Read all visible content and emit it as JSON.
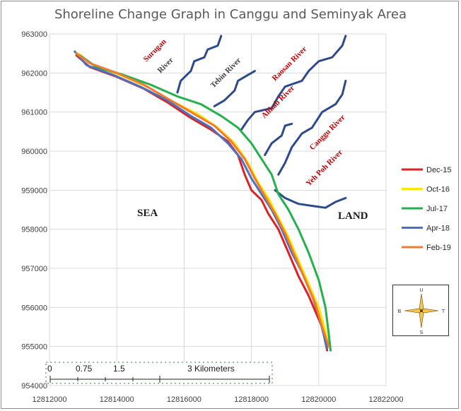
{
  "chart_data": {
    "type": "line",
    "title": "Shoreline Change Graph in Canggu and Seminyak Area",
    "xlabel": "",
    "ylabel": "",
    "xlim": [
      12812000,
      12822000
    ],
    "ylim": [
      954000,
      963000
    ],
    "x_ticks": [
      "12812000",
      "12814000",
      "12816000",
      "12818000",
      "12820000",
      "12822000"
    ],
    "y_ticks": [
      "954000",
      "955000",
      "956000",
      "957000",
      "958000",
      "959000",
      "960000",
      "961000",
      "962000",
      "963000"
    ],
    "grid": true,
    "legend_position": "right",
    "series": [
      {
        "name": "Dec-15",
        "color": "#e02020",
        "width": 3,
        "points": [
          [
            12812800,
            962450
          ],
          [
            12813200,
            962150
          ],
          [
            12814000,
            961900
          ],
          [
            12814800,
            961600
          ],
          [
            12815500,
            961250
          ],
          [
            12816200,
            960850
          ],
          [
            12816800,
            960550
          ],
          [
            12817300,
            960250
          ],
          [
            12817600,
            959900
          ],
          [
            12817800,
            959400
          ],
          [
            12818000,
            959000
          ],
          [
            12818300,
            958750
          ],
          [
            12818500,
            958400
          ],
          [
            12818800,
            958000
          ],
          [
            12819100,
            957400
          ],
          [
            12819400,
            956800
          ],
          [
            12819700,
            956300
          ],
          [
            12819900,
            955900
          ],
          [
            12820100,
            955500
          ],
          [
            12820200,
            955100
          ],
          [
            12820250,
            954900
          ]
        ]
      },
      {
        "name": "Oct-16",
        "color": "#ffe600",
        "width": 3,
        "points": [
          [
            12812850,
            962500
          ],
          [
            12813300,
            962200
          ],
          [
            12814100,
            961950
          ],
          [
            12814900,
            961650
          ],
          [
            12815700,
            961250
          ],
          [
            12816400,
            960950
          ],
          [
            12817000,
            960600
          ],
          [
            12817500,
            960200
          ],
          [
            12817900,
            959700
          ],
          [
            12818200,
            959200
          ],
          [
            12818500,
            958800
          ],
          [
            12818800,
            958300
          ],
          [
            12819100,
            957800
          ],
          [
            12819400,
            957200
          ],
          [
            12819700,
            956600
          ],
          [
            12820000,
            956000
          ],
          [
            12820200,
            955400
          ],
          [
            12820300,
            955000
          ]
        ]
      },
      {
        "name": "Jul-17",
        "color": "#22b14c",
        "width": 3,
        "points": [
          [
            12812900,
            962450
          ],
          [
            12813400,
            962150
          ],
          [
            12814200,
            961950
          ],
          [
            12815000,
            961700
          ],
          [
            12815800,
            961400
          ],
          [
            12816500,
            961200
          ],
          [
            12817100,
            960900
          ],
          [
            12817600,
            960600
          ],
          [
            12818000,
            960200
          ],
          [
            12818300,
            959800
          ],
          [
            12818600,
            959400
          ],
          [
            12818800,
            958900
          ],
          [
            12819100,
            958500
          ],
          [
            12819400,
            958000
          ],
          [
            12819700,
            957400
          ],
          [
            12820000,
            956700
          ],
          [
            12820200,
            956000
          ],
          [
            12820300,
            955300
          ],
          [
            12820350,
            954900
          ]
        ]
      },
      {
        "name": "Apr-18",
        "color": "#4f6fbf",
        "width": 3,
        "points": [
          [
            12812750,
            962550
          ],
          [
            12813100,
            962200
          ],
          [
            12813900,
            961950
          ],
          [
            12814700,
            961650
          ],
          [
            12815500,
            961300
          ],
          [
            12816200,
            960900
          ],
          [
            12816800,
            960600
          ],
          [
            12817300,
            960200
          ],
          [
            12817700,
            959800
          ],
          [
            12818000,
            959300
          ],
          [
            12818300,
            958900
          ],
          [
            12818600,
            958500
          ],
          [
            12818900,
            958000
          ],
          [
            12819200,
            957400
          ],
          [
            12819500,
            956900
          ],
          [
            12819800,
            956300
          ],
          [
            12820000,
            955800
          ],
          [
            12820150,
            955300
          ],
          [
            12820250,
            954950
          ]
        ]
      },
      {
        "name": "Feb-19",
        "color": "#ed7d31",
        "width": 3,
        "points": [
          [
            12812800,
            962500
          ],
          [
            12813200,
            962250
          ],
          [
            12814000,
            962000
          ],
          [
            12814800,
            961700
          ],
          [
            12815600,
            961300
          ],
          [
            12816300,
            960950
          ],
          [
            12816900,
            960650
          ],
          [
            12817400,
            960250
          ],
          [
            12817800,
            959800
          ],
          [
            12818100,
            959300
          ],
          [
            12818400,
            958850
          ],
          [
            12818700,
            958400
          ],
          [
            12819000,
            957900
          ],
          [
            12819300,
            957300
          ],
          [
            12819600,
            956700
          ],
          [
            12819900,
            956100
          ],
          [
            12820100,
            955500
          ],
          [
            12820300,
            955000
          ]
        ]
      }
    ],
    "rivers": [
      {
        "name": "Surugan River",
        "color": "#2e4a8c",
        "points": [
          [
            12817100,
            962950
          ],
          [
            12817000,
            962700
          ],
          [
            12816700,
            962600
          ],
          [
            12816600,
            962400
          ],
          [
            12816300,
            962300
          ],
          [
            12816200,
            962050
          ],
          [
            12815900,
            961800
          ],
          [
            12815800,
            961500
          ]
        ]
      },
      {
        "name": "Tebin River",
        "color": "#2e4a8c",
        "points": [
          [
            12818100,
            962050
          ],
          [
            12817900,
            961950
          ],
          [
            12817600,
            961800
          ],
          [
            12817500,
            961550
          ],
          [
            12817200,
            961300
          ],
          [
            12816900,
            961150
          ]
        ]
      },
      {
        "name": "Raosan River",
        "color": "#2e4a8c",
        "points": [
          [
            12820800,
            962950
          ],
          [
            12820700,
            962700
          ],
          [
            12820400,
            962400
          ],
          [
            12820000,
            962300
          ],
          [
            12819700,
            962050
          ],
          [
            12819500,
            961800
          ],
          [
            12819000,
            961650
          ],
          [
            12818800,
            961400
          ],
          [
            12818600,
            961100
          ],
          [
            12818100,
            961000
          ],
          [
            12817900,
            960800
          ],
          [
            12817700,
            960550
          ]
        ]
      },
      {
        "name": "Alikab River",
        "color": "#2e4a8c",
        "points": [
          [
            12819200,
            960700
          ],
          [
            12819000,
            960650
          ],
          [
            12818900,
            960400
          ],
          [
            12818600,
            960200
          ],
          [
            12818400,
            959900
          ]
        ]
      },
      {
        "name": "Canggu River",
        "color": "#2e4a8c",
        "points": [
          [
            12820800,
            961800
          ],
          [
            12820700,
            961450
          ],
          [
            12820500,
            961200
          ],
          [
            12820100,
            961000
          ],
          [
            12819800,
            960600
          ],
          [
            12819500,
            960450
          ],
          [
            12819200,
            960100
          ],
          [
            12819000,
            959700
          ],
          [
            12818800,
            959400
          ]
        ]
      },
      {
        "name": "Yeh Poh River",
        "color": "#2e4a8c",
        "points": [
          [
            12820800,
            958800
          ],
          [
            12820500,
            958700
          ],
          [
            12820200,
            958550
          ],
          [
            12819800,
            958600
          ],
          [
            12819400,
            958650
          ],
          [
            12819000,
            958800
          ],
          [
            12818700,
            959000
          ]
        ]
      }
    ],
    "river_labels": {
      "surugan": "Surugan",
      "surugan_river": "River",
      "tebin": "Tebin River",
      "raosan": "Raosan River",
      "alikab": "Alikab River",
      "canggu": "Canggu River",
      "yehpoh": "Yeh Poh River"
    },
    "annotations": {
      "sea": "SEA",
      "land": "LAND"
    },
    "scale_bar": {
      "labels": [
        "0",
        "0.75",
        "1.5",
        "3 Kilometers"
      ]
    },
    "compass": {
      "n": "U",
      "s": "S",
      "w": "B",
      "e": "T"
    }
  }
}
